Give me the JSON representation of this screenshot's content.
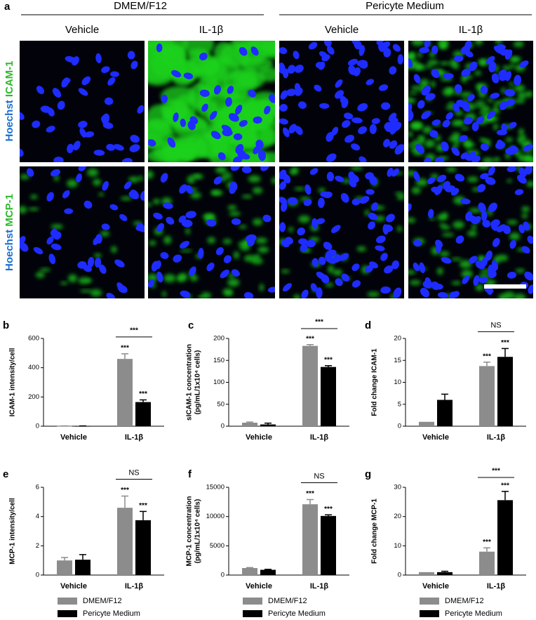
{
  "image_panel": {
    "label": "a",
    "groups": [
      "DMEM/F12",
      "Pericyte Medium"
    ],
    "columns": [
      "Vehicle",
      "IL-1β",
      "Vehicle",
      "IL-1β"
    ],
    "rows": [
      {
        "stain": "Hoechst",
        "marker": "ICAM-1"
      },
      {
        "stain": "Hoechst",
        "marker": "MCP-1"
      }
    ]
  },
  "chart_data": [
    {
      "type": "bar",
      "label": "b",
      "ylabel": [
        "ICAM-1 intensity/cell"
      ],
      "categories": [
        "Vehicle",
        "IL-1β"
      ],
      "series": [
        {
          "color": "#8c8c8c",
          "values": [
            1,
            460
          ],
          "errors": [
            1,
            35
          ],
          "significance": [
            null,
            "***"
          ]
        },
        {
          "color": "#000000",
          "values": [
            1,
            165
          ],
          "errors": [
            1,
            15
          ],
          "significance": [
            null,
            "***"
          ]
        }
      ],
      "comparison": "***",
      "ylim": [
        0,
        600
      ],
      "yticks": [
        0,
        200,
        400,
        600
      ]
    },
    {
      "type": "bar",
      "label": "c",
      "ylabel": [
        "sICAM-1 concentration",
        "(pg/mL/1x10⁴ cells)"
      ],
      "categories": [
        "Vehicle",
        "IL-1β"
      ],
      "series": [
        {
          "color": "#8c8c8c",
          "values": [
            8,
            183
          ],
          "errors": [
            1.5,
            3
          ],
          "significance": [
            null,
            "***"
          ]
        },
        {
          "color": "#000000",
          "values": [
            4,
            135
          ],
          "errors": [
            3,
            3
          ],
          "significance": [
            null,
            "***"
          ]
        }
      ],
      "comparison": "***",
      "ylim": [
        0,
        200
      ],
      "yticks": [
        0,
        50,
        100,
        150,
        200
      ]
    },
    {
      "type": "bar",
      "label": "d",
      "ylabel": [
        "Fold change ICAM-1"
      ],
      "categories": [
        "Vehicle",
        "IL-1β"
      ],
      "series": [
        {
          "color": "#8c8c8c",
          "values": [
            1,
            13.7
          ],
          "errors": [
            null,
            0.9
          ],
          "significance": [
            null,
            "***"
          ]
        },
        {
          "color": "#000000",
          "values": [
            6,
            15.8
          ],
          "errors": [
            1.3,
            1.9
          ],
          "significance": [
            null,
            "***"
          ]
        }
      ],
      "comparison": "NS",
      "ylim": [
        0,
        20
      ],
      "yticks": [
        0,
        5,
        10,
        15,
        20
      ]
    },
    {
      "type": "bar",
      "label": "e",
      "ylabel": [
        "MCP-1 intensity/cell"
      ],
      "categories": [
        "Vehicle",
        "IL-1β"
      ],
      "legend": "below",
      "series": [
        {
          "name": "DMEM/F12",
          "color": "#8c8c8c",
          "values": [
            1.0,
            4.6
          ],
          "errors": [
            0.2,
            0.8
          ],
          "significance": [
            null,
            "***"
          ]
        },
        {
          "name": "Pericyte Medium",
          "color": "#000000",
          "values": [
            1.05,
            3.75
          ],
          "errors": [
            0.35,
            0.6
          ],
          "significance": [
            null,
            "***"
          ]
        }
      ],
      "comparison": "NS",
      "ylim": [
        0,
        6
      ],
      "yticks": [
        0,
        2,
        4,
        6
      ]
    },
    {
      "type": "bar",
      "label": "f",
      "ylabel": [
        "MCP-1 concentration",
        "(pg/mL/1x10⁴ cells)"
      ],
      "categories": [
        "Vehicle",
        "IL-1β"
      ],
      "legend": "below",
      "series": [
        {
          "name": "DMEM/F12",
          "color": "#8c8c8c",
          "values": [
            1200,
            12100
          ],
          "errors": [
            80,
            800
          ],
          "significance": [
            null,
            "***"
          ]
        },
        {
          "name": "Pericyte Medium",
          "color": "#000000",
          "values": [
            900,
            10100
          ],
          "errors": [
            80,
            200
          ],
          "significance": [
            null,
            "***"
          ]
        }
      ],
      "comparison": "NS",
      "ylim": [
        0,
        15000
      ],
      "yticks": [
        0,
        5000,
        10000,
        15000
      ]
    },
    {
      "type": "bar",
      "label": "g",
      "ylabel": [
        "Fold change MCP-1"
      ],
      "categories": [
        "Vehicle",
        "IL-1β"
      ],
      "legend": "below",
      "series": [
        {
          "name": "DMEM/F12",
          "color": "#8c8c8c",
          "values": [
            1,
            8
          ],
          "errors": [
            null,
            1.3
          ],
          "significance": [
            null,
            "***"
          ]
        },
        {
          "name": "Pericyte Medium",
          "color": "#000000",
          "values": [
            1,
            25.6
          ],
          "errors": [
            0.3,
            3
          ],
          "significance": [
            null,
            "***"
          ]
        }
      ],
      "comparison": "***",
      "ylim": [
        0,
        30
      ],
      "yticks": [
        0,
        10,
        20,
        30
      ]
    }
  ]
}
